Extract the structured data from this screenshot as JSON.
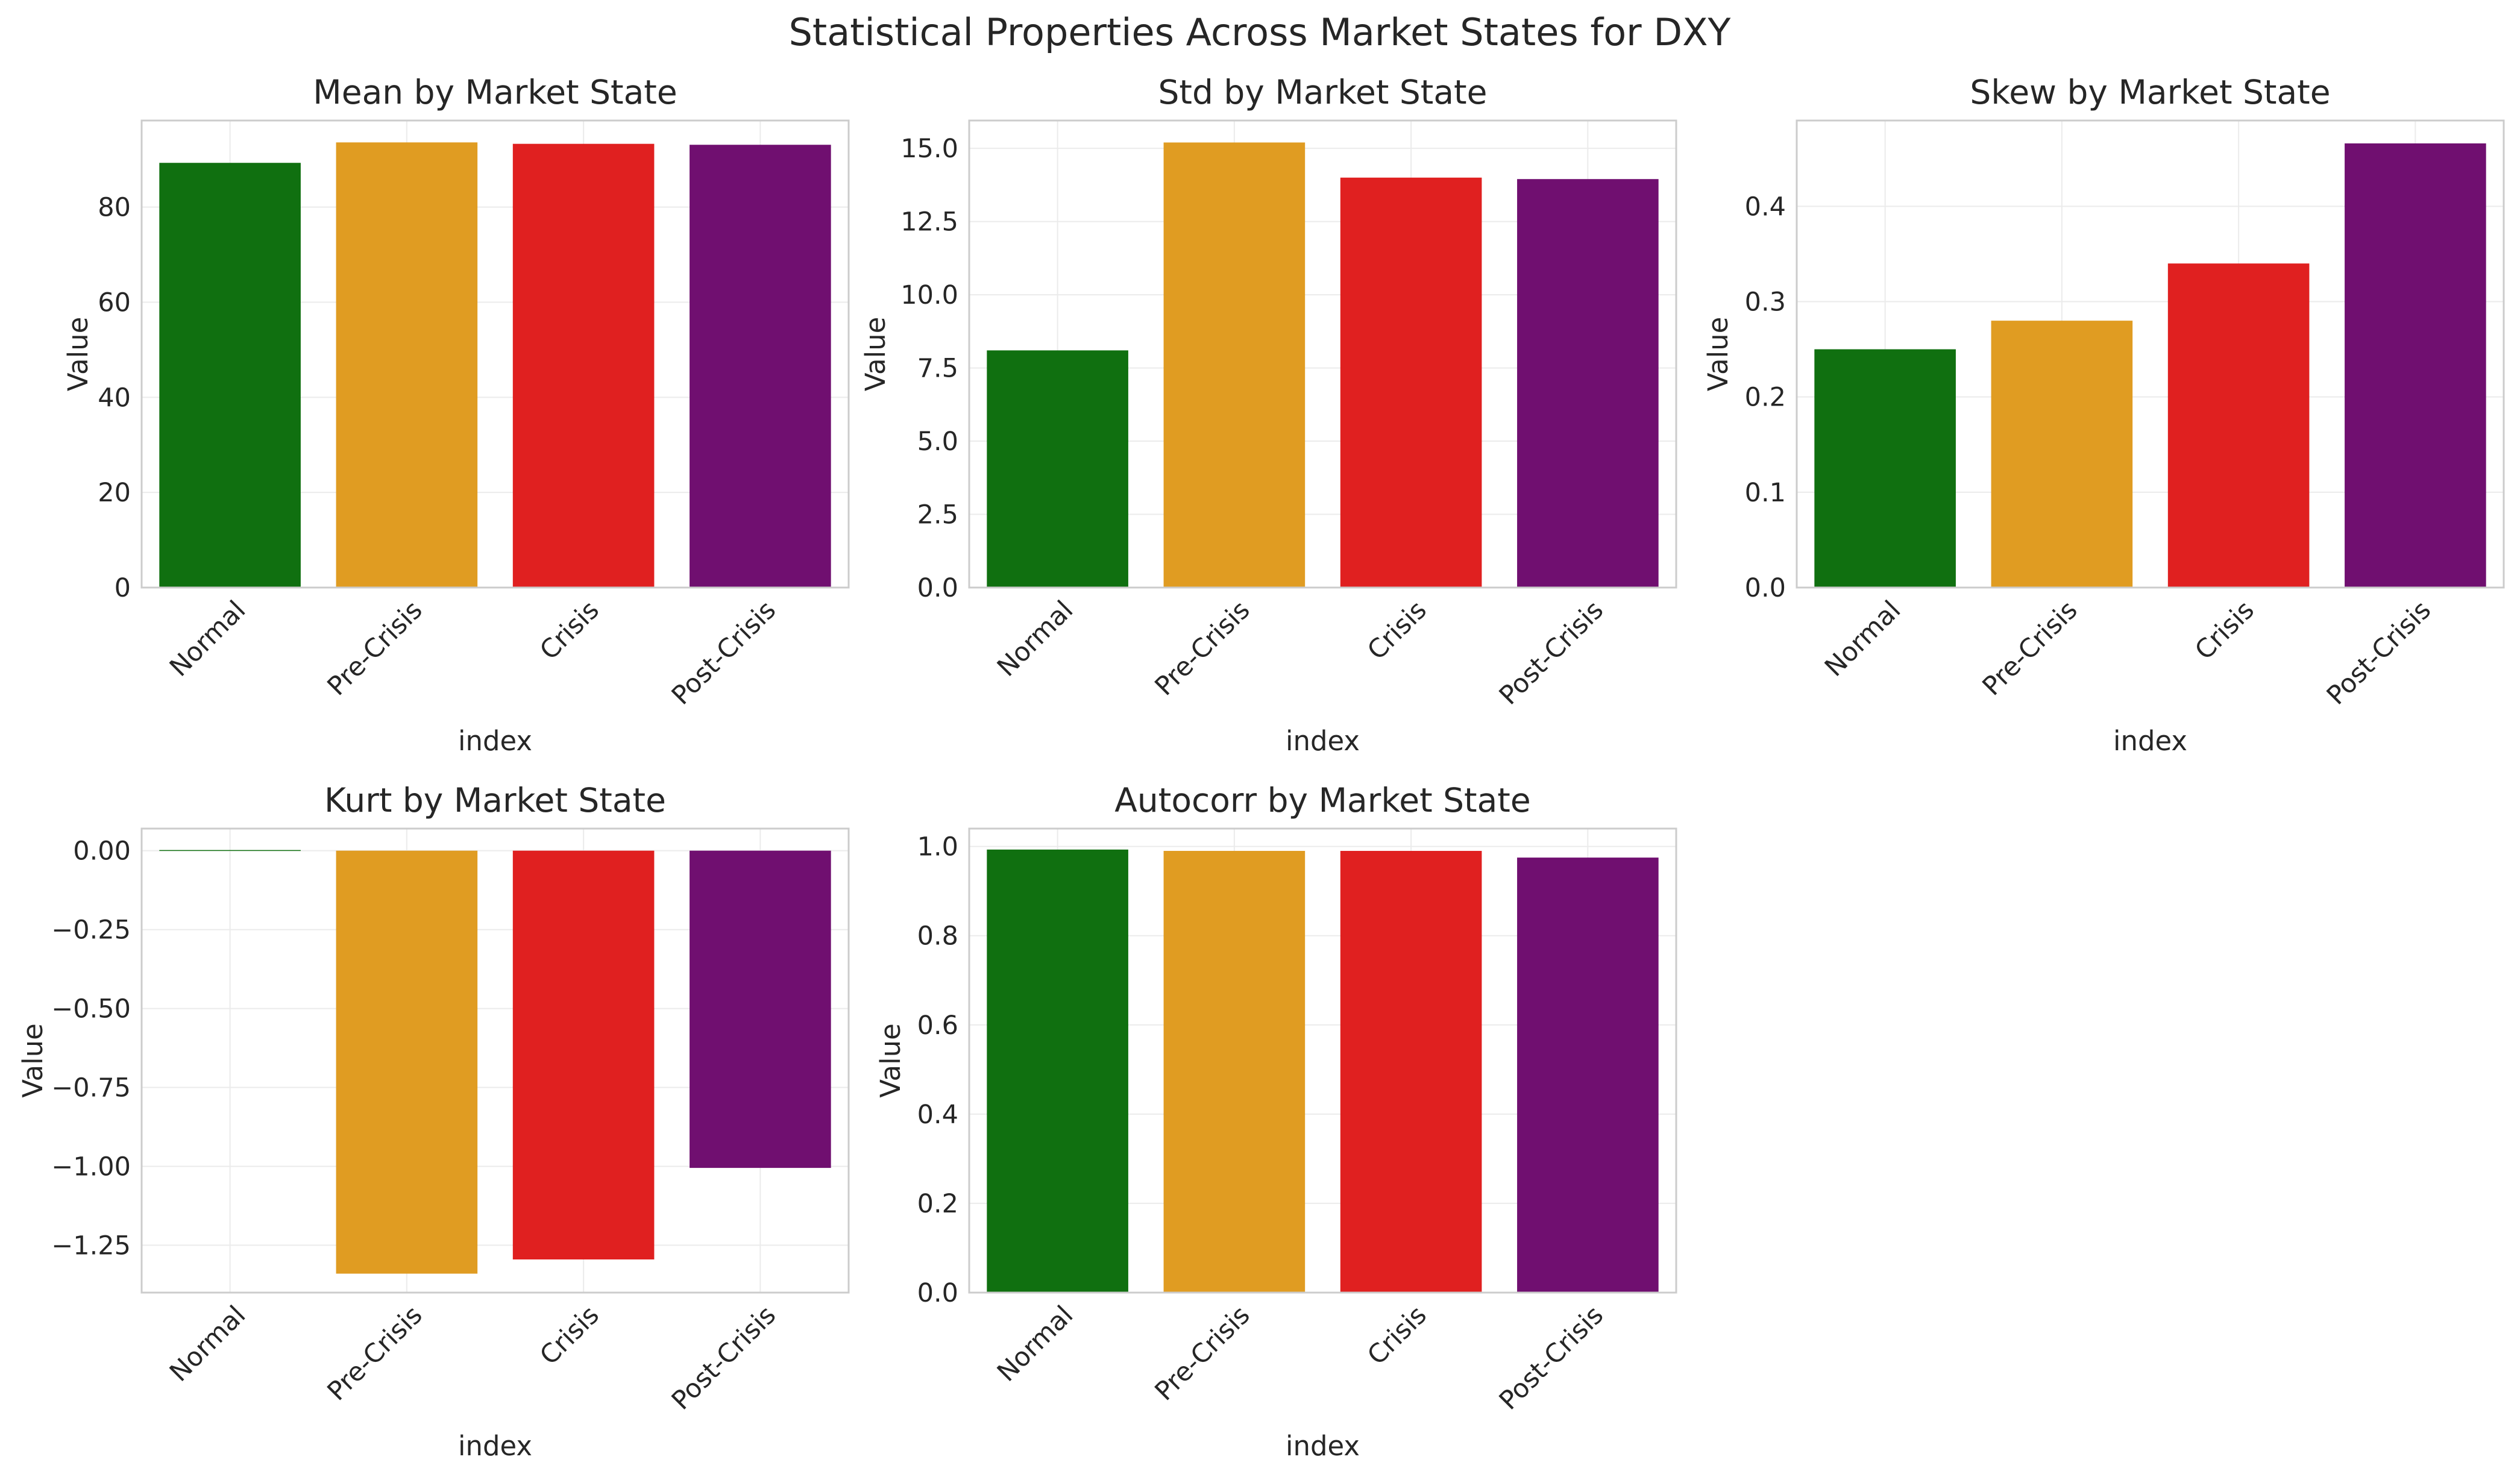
{
  "figure": {
    "suptitle": "Statistical Properties Across Market States for DXY"
  },
  "colors": {
    "Normal": "#107010",
    "Pre-Crisis": "#e09c22",
    "Crisis": "#e02020",
    "Post-Crisis": "#700f70"
  },
  "chart_data": [
    {
      "type": "bar",
      "title": "Mean by Market State",
      "xlabel": "index",
      "ylabel": "Value",
      "categories": [
        "Normal",
        "Pre-Crisis",
        "Crisis",
        "Post-Crisis"
      ],
      "values": [
        89.3,
        93.6,
        93.3,
        93.1
      ],
      "ylim": [
        0,
        98.2
      ],
      "yticks": [
        0,
        20,
        40,
        60,
        80
      ],
      "ytick_labels": [
        "0",
        "20",
        "40",
        "60",
        "80"
      ],
      "grid": true
    },
    {
      "type": "bar",
      "title": "Std by Market State",
      "xlabel": "index",
      "ylabel": "Value",
      "categories": [
        "Normal",
        "Pre-Crisis",
        "Crisis",
        "Post-Crisis"
      ],
      "values": [
        8.1,
        15.2,
        14.0,
        13.95
      ],
      "ylim": [
        0,
        15.95
      ],
      "yticks": [
        0,
        2.5,
        5,
        7.5,
        10,
        12.5,
        15
      ],
      "ytick_labels": [
        "0.0",
        "2.5",
        "5.0",
        "7.5",
        "10.0",
        "12.5",
        "15.0"
      ],
      "grid": true
    },
    {
      "type": "bar",
      "title": "Skew by Market State",
      "xlabel": "index",
      "ylabel": "Value",
      "categories": [
        "Normal",
        "Pre-Crisis",
        "Crisis",
        "Post-Crisis"
      ],
      "values": [
        0.25,
        0.28,
        0.34,
        0.466
      ],
      "ylim": [
        0,
        0.49
      ],
      "yticks": [
        0,
        0.1,
        0.2,
        0.3,
        0.4
      ],
      "ytick_labels": [
        "0.0",
        "0.1",
        "0.2",
        "0.3",
        "0.4"
      ],
      "grid": true
    },
    {
      "type": "bar",
      "title": "Kurt by Market State",
      "xlabel": "index",
      "ylabel": "Value",
      "categories": [
        "Normal",
        "Pre-Crisis",
        "Crisis",
        "Post-Crisis"
      ],
      "values": [
        0.002,
        -1.34,
        -1.295,
        -1.005
      ],
      "ylim": [
        -1.4,
        0.07
      ],
      "yticks": [
        0,
        -0.25,
        -0.5,
        -0.75,
        -1,
        -1.25
      ],
      "ytick_labels": [
        "0.00",
        "−0.25",
        "−0.50",
        "−0.75",
        "−1.00",
        "−1.25"
      ],
      "grid": true
    },
    {
      "type": "bar",
      "title": "Autocorr by Market State",
      "xlabel": "index",
      "ylabel": "Value",
      "categories": [
        "Normal",
        "Pre-Crisis",
        "Crisis",
        "Post-Crisis"
      ],
      "values": [
        0.993,
        0.99,
        0.99,
        0.975
      ],
      "ylim": [
        0,
        1.04
      ],
      "yticks": [
        0,
        0.2,
        0.4,
        0.6,
        0.8,
        1.0
      ],
      "ytick_labels": [
        "0.0",
        "0.2",
        "0.4",
        "0.6",
        "0.8",
        "1.0"
      ],
      "grid": true
    }
  ]
}
